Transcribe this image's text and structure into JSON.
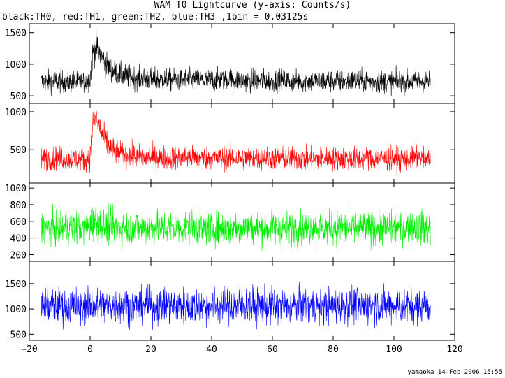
{
  "title": "WAM T0 Lightcurve (y-axis: Counts/s)",
  "subtitle": "black:TH0, red:TH1, green:TH2, blue:TH3 ,1bin = 0.03125s",
  "footer": "yamaoka 14-Feb-2006 15:55",
  "colors": {
    "TH0": "#000000",
    "TH1": "#ff0000",
    "TH2": "#00ee00",
    "TH3": "#0000ff"
  },
  "chart_data": {
    "type": "line",
    "xlim": [
      -20,
      120
    ],
    "x_ticks": [
      -20,
      0,
      20,
      40,
      60,
      80,
      100,
      120
    ],
    "x_tick_labels": [
      "−20",
      "0",
      "20",
      "40",
      "60",
      "80",
      "100",
      "120"
    ],
    "bin_width_s": 0.03125,
    "grid": false,
    "legend": "none",
    "panels": [
      {
        "name": "TH0",
        "color": "#000000",
        "ylim": [
          380,
          1640
        ],
        "y_ticks": [
          500,
          1000,
          1500
        ],
        "y_tick_labels": [
          "500",
          "1000",
          "1500"
        ],
        "x": [
          -16,
          -10,
          -5,
          -2,
          0,
          0.5,
          1,
          2,
          3,
          4,
          6,
          8,
          10,
          15,
          20,
          30,
          40,
          43,
          50,
          60,
          70,
          80,
          90,
          100,
          112
        ],
        "mean": [
          720,
          730,
          720,
          700,
          760,
          1000,
          1200,
          1280,
          1200,
          1080,
          950,
          880,
          830,
          780,
          760,
          750,
          745,
          760,
          745,
          740,
          735,
          730,
          730,
          725,
          725
        ],
        "noise": [
          150,
          150,
          150,
          150,
          160,
          180,
          200,
          200,
          190,
          180,
          170,
          160,
          160,
          155,
          155,
          150,
          150,
          150,
          150,
          150,
          150,
          150,
          150,
          150,
          150
        ]
      },
      {
        "name": "TH1",
        "color": "#ff0000",
        "ylim": [
          60,
          1110
        ],
        "y_ticks": [
          500,
          1000
        ],
        "y_tick_labels": [
          "500",
          "1000"
        ],
        "x": [
          -16,
          -10,
          -5,
          -2,
          0,
          0.5,
          1,
          2,
          3,
          4,
          6,
          8,
          10,
          15,
          20,
          30,
          40,
          50,
          60,
          70,
          80,
          90,
          100,
          112
        ],
        "mean": [
          380,
          390,
          380,
          370,
          400,
          650,
          880,
          920,
          820,
          700,
          560,
          480,
          440,
          410,
          400,
          395,
          390,
          390,
          385,
          380,
          380,
          380,
          380,
          380
        ],
        "noise": [
          130,
          130,
          130,
          130,
          140,
          160,
          180,
          170,
          160,
          150,
          145,
          140,
          140,
          135,
          135,
          130,
          130,
          130,
          130,
          130,
          130,
          130,
          130,
          130
        ]
      },
      {
        "name": "TH2",
        "color": "#00ee00",
        "ylim": [
          120,
          1060
        ],
        "y_ticks": [
          200,
          400,
          600,
          800,
          1000
        ],
        "y_tick_labels": [
          "200",
          "400",
          "600",
          "800",
          "1000"
        ],
        "x": [
          -16,
          -5,
          -2,
          0,
          1,
          2,
          4,
          10,
          20,
          40,
          60,
          80,
          100,
          112
        ],
        "mean": [
          520,
          520,
          515,
          540,
          600,
          580,
          550,
          530,
          525,
          520,
          520,
          520,
          520,
          520
        ],
        "noise": [
          170,
          170,
          170,
          175,
          185,
          180,
          175,
          170,
          170,
          170,
          170,
          170,
          170,
          170
        ]
      },
      {
        "name": "TH3",
        "color": "#0000ff",
        "ylim": [
          380,
          1940
        ],
        "y_ticks": [
          500,
          1000,
          1500
        ],
        "y_tick_labels": [
          "500",
          "1000",
          "1500"
        ],
        "x": [
          -16,
          0,
          20,
          40,
          60,
          80,
          100,
          112
        ],
        "mean": [
          1060,
          1060,
          1060,
          1060,
          1060,
          1060,
          1060,
          1060
        ],
        "noise": [
          300,
          300,
          300,
          300,
          300,
          300,
          300,
          300
        ]
      }
    ]
  }
}
